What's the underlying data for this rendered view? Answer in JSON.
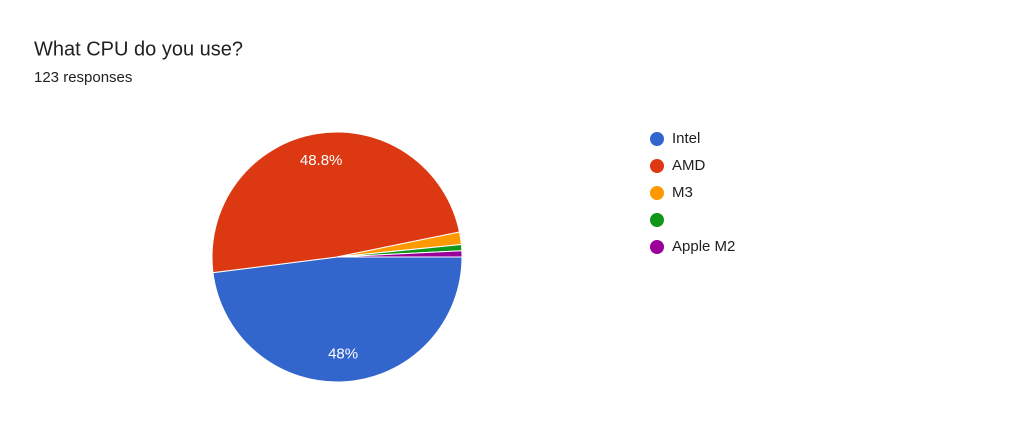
{
  "chart_data": {
    "type": "pie",
    "title": "What CPU do you use?",
    "subtitle": "123 responses",
    "categories": [
      "Intel",
      "AMD",
      "M3",
      null,
      "Apple M2"
    ],
    "values": [
      48,
      48.8,
      1.6,
      0.8,
      0.8
    ],
    "value_labels": [
      "48%",
      "48.8%",
      null,
      null,
      null
    ],
    "colors": [
      "#3366cc",
      "#dc3912",
      "#ff9900",
      "#109618",
      "#990099"
    ],
    "legend": "right"
  }
}
